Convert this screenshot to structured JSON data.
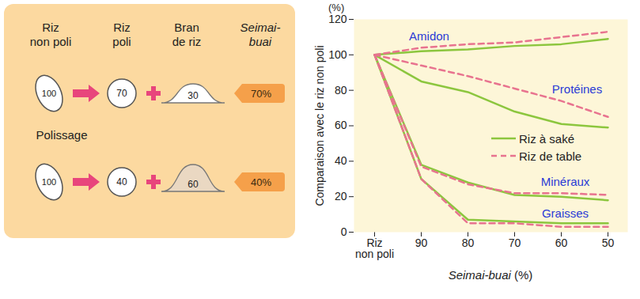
{
  "diagram": {
    "headers": [
      "Riz non poli",
      "Riz poli",
      "Bran de riz",
      "Seimai-buai"
    ],
    "step_label": "Polissage",
    "rows": [
      {
        "unpolished": 100,
        "polished": 70,
        "bran": 30,
        "seimai_buai": {
          "value": 70,
          "label": "70%"
        }
      },
      {
        "unpolished": 100,
        "polished": 40,
        "bran": 60,
        "seimai_buai": {
          "value": 40,
          "label": "40%"
        }
      }
    ]
  },
  "chart_data": {
    "type": "line",
    "categories": [
      "Riz non poli",
      "90",
      "80",
      "70",
      "60",
      "50"
    ],
    "x_label": "Seimai-buai (%)",
    "y_label": "Comparaison avec le riz non poli",
    "y_unit": "(%)",
    "ylim": [
      0,
      120
    ],
    "yticks": [
      0,
      20,
      40,
      60,
      80,
      100,
      120
    ],
    "grid": false,
    "legend": "right",
    "rice_types": [
      {
        "name": "Riz à saké",
        "color": "#8cc63e",
        "line_style": "solid"
      },
      {
        "name": "Riz de table",
        "color": "#e8738f",
        "line_style": "dashed"
      }
    ],
    "series": [
      {
        "name": "Amidon",
        "rice": "Riz à saké",
        "values": [
          100,
          102,
          103,
          105,
          106,
          109
        ]
      },
      {
        "name": "Amidon",
        "rice": "Riz de table",
        "values": [
          100,
          104,
          106,
          107,
          110,
          113
        ]
      },
      {
        "name": "Protéines",
        "rice": "Riz à saké",
        "values": [
          100,
          85,
          79,
          68,
          61,
          59
        ]
      },
      {
        "name": "Protéines",
        "rice": "Riz de table",
        "values": [
          100,
          94,
          88,
          81,
          74,
          65
        ]
      },
      {
        "name": "Minéraux",
        "rice": "Riz à saké",
        "values": [
          100,
          38,
          28,
          21,
          20,
          18
        ]
      },
      {
        "name": "Minéraux",
        "rice": "Riz de table",
        "values": [
          100,
          37,
          27,
          22,
          22,
          21
        ]
      },
      {
        "name": "Graisses",
        "rice": "Riz à saké",
        "values": [
          100,
          30,
          7,
          6,
          5,
          5
        ]
      },
      {
        "name": "Graisses",
        "rice": "Riz de table",
        "values": [
          100,
          30,
          5,
          5,
          3,
          3
        ]
      }
    ]
  }
}
